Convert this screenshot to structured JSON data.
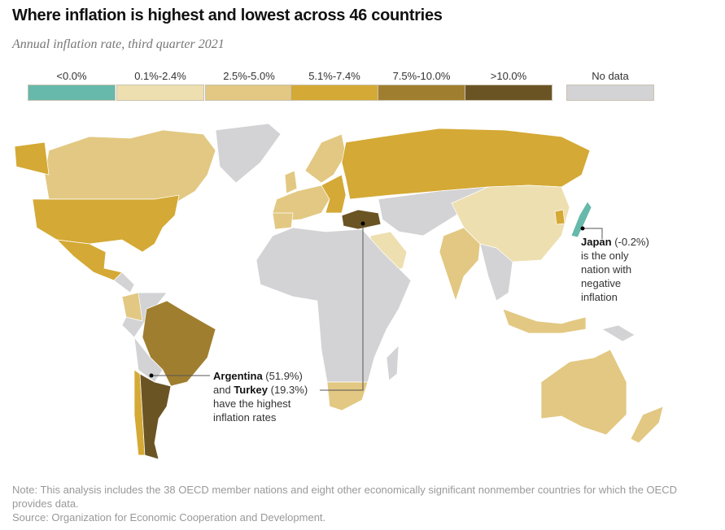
{
  "title": "Where inflation is highest and lowest across 46 countries",
  "subtitle": "Annual inflation rate, third quarter 2021",
  "legend": [
    {
      "label": "<0.0%",
      "color": "#66b9ab"
    },
    {
      "label": "0.1%-2.4%",
      "color": "#eedfb0"
    },
    {
      "label": "2.5%-5.0%",
      "color": "#e2c882"
    },
    {
      "label": "5.1%-7.4%",
      "color": "#d4a935"
    },
    {
      "label": "7.5%-10.0%",
      "color": "#a07e2f"
    },
    {
      "label": ">10.0%",
      "color": "#6b5424"
    },
    {
      "label": "No data",
      "color": "#d3d3d5"
    }
  ],
  "annotations": {
    "argentina_name": "Argentina",
    "argentina_value": "(51.9%)",
    "and": "and",
    "turkey_name": "Turkey",
    "turkey_value": "(19.3%)",
    "high_line3": "have the highest",
    "high_line4": "inflation rates",
    "japan_name": "Japan",
    "japan_value": "(-0.2%)",
    "japan_line2": "is the only",
    "japan_line3": "nation with",
    "japan_line4": "negative",
    "japan_line5": "inflation"
  },
  "chart_data": {
    "type": "choropleth",
    "title": "Where inflation is highest and lowest across 46 countries",
    "subtitle": "Annual inflation rate, third quarter 2021",
    "highlighted": [
      {
        "country": "Argentina",
        "value": 51.9
      },
      {
        "country": "Turkey",
        "value": 19.3
      },
      {
        "country": "Japan",
        "value": -0.2
      }
    ]
  },
  "note": "Note: This analysis includes the 38 OECD member nations and eight other economically significant nonmember countries for which the OECD provides data.",
  "source": "Source: Organization for Economic Cooperation and Development."
}
